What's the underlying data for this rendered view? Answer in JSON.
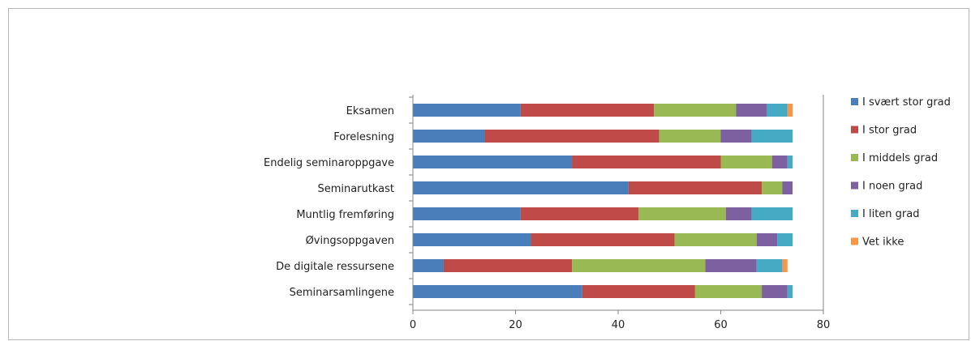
{
  "chart_data": {
    "type": "bar",
    "orientation": "horizontal",
    "stacked": true,
    "title": "",
    "xlabel": "",
    "ylabel": "",
    "xlim": [
      0,
      80
    ],
    "xticks": [
      "0",
      "20",
      "40",
      "60",
      "80"
    ],
    "grid": false,
    "legend_position": "right",
    "categories": [
      "Eksamen",
      "Forelesning",
      "Endelig seminaroppgave",
      "Seminarutkast",
      "Muntlig fremføring",
      "Øvingsoppgaven",
      "De digitale ressursene",
      "Seminarsamlingene"
    ],
    "series": [
      {
        "name": "I svært stor grad",
        "color": "#4a7ebb",
        "values": [
          21,
          14,
          31,
          42,
          21,
          23,
          6,
          33
        ]
      },
      {
        "name": "I stor grad",
        "color": "#be4b48",
        "values": [
          26,
          34,
          29,
          26,
          23,
          28,
          25,
          22
        ]
      },
      {
        "name": "I middels grad",
        "color": "#98b954",
        "values": [
          16,
          12,
          10,
          4,
          17,
          16,
          26,
          13
        ]
      },
      {
        "name": "I noen grad",
        "color": "#7d60a0",
        "values": [
          6,
          6,
          3,
          2,
          5,
          4,
          10,
          5
        ]
      },
      {
        "name": "I liten grad",
        "color": "#46aac5",
        "values": [
          4,
          8,
          1,
          0,
          8,
          3,
          5,
          1
        ]
      },
      {
        "name": "Vet ikke",
        "color": "#f79646",
        "values": [
          1,
          0,
          0,
          0,
          0,
          0,
          1,
          0
        ]
      }
    ]
  }
}
